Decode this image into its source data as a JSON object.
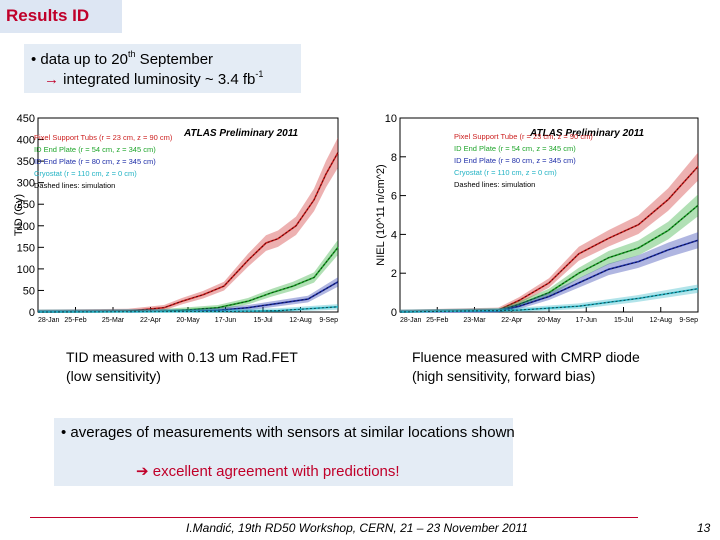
{
  "slide": {
    "title": "Results ID",
    "info": {
      "line1_prefix": "• data up to 20",
      "line1_sup": "th",
      "line1_suffix": " September",
      "line2_arrow": "→",
      "line2_prefix": " integrated luminosity ~ 3.4 fb",
      "line2_sup": "-1"
    },
    "caption_left": [
      "TID measured with 0.13 um Rad.FET",
      "(low sensitivity)"
    ],
    "caption_right": [
      "Fluence measured with CMRP diode",
      "(high sensitivity, forward bias)"
    ],
    "summary": {
      "line1": "• averages of measurements with sensors at similar locations shown",
      "arrow": "➔",
      "line2": " excellent agreement with predictions!"
    },
    "footer": "I.Mandić, 19th RD50 Workshop, CERN, 21 – 23 November 2011",
    "page_number": "13"
  },
  "colors": {
    "title": "#c0002a",
    "pixel": "#cc1f1f",
    "id54": "#1fa52b",
    "id80": "#1e2ea8",
    "cryostat": "#22b3c4"
  },
  "chart_data": [
    {
      "type": "line",
      "ylabel": "TID (Gy)",
      "banner": "ATLAS Preliminary  2011",
      "ylim": [
        0,
        450
      ],
      "yticks": [
        "0",
        "50",
        "100",
        "150",
        "200",
        "250",
        "300",
        "350",
        "400",
        "450"
      ],
      "xticks": [
        "28-Jan",
        "25-Feb",
        "25-Mar",
        "22-Apr",
        "20-May",
        "17-Jun",
        "15-Jul",
        "12-Aug",
        "9-Sep"
      ],
      "legend": [
        "Pixel Support Tubs (r = 23 cm, z = 90 cm)",
        "ID End Plate (r = 54 cm, z = 345 cm)",
        "ID End Plate (r = 80 cm, z = 345 cm)",
        "Cryostat (r = 110 cm, z = 0 cm)",
        "Dashed lines: simulation"
      ],
      "series": [
        {
          "name": "Pixel Support Tubs",
          "color": "#cc1f1f",
          "x": [
            0,
            0.3,
            0.42,
            0.48,
            0.55,
            0.62,
            0.7,
            0.76,
            0.8,
            0.86,
            0.92,
            0.96,
            1.0
          ],
          "values": [
            0,
            2,
            10,
            25,
            40,
            60,
            120,
            160,
            170,
            200,
            260,
            320,
            370
          ]
        },
        {
          "name": "ID End Plate 54 cm",
          "color": "#1fa52b",
          "x": [
            0,
            0.4,
            0.5,
            0.6,
            0.7,
            0.78,
            0.85,
            0.92,
            1.0
          ],
          "values": [
            0,
            1,
            5,
            10,
            25,
            45,
            60,
            80,
            150
          ]
        },
        {
          "name": "ID End Plate 80 cm",
          "color": "#1e2ea8",
          "x": [
            0,
            0.5,
            0.6,
            0.7,
            0.8,
            0.9,
            1.0
          ],
          "values": [
            0,
            1,
            4,
            10,
            20,
            30,
            70
          ]
        },
        {
          "name": "Cryostat",
          "color": "#22b3c4",
          "x": [
            0,
            0.6,
            0.8,
            1.0
          ],
          "values": [
            0,
            1,
            3,
            12
          ]
        }
      ]
    },
    {
      "type": "line",
      "ylabel": "NIEL (10^11 n/cm^2)",
      "banner": "ATLAS Preliminary  2011",
      "ylim": [
        0,
        10
      ],
      "yticks": [
        "0",
        "2",
        "4",
        "6",
        "8",
        "10"
      ],
      "xticks": [
        "28-Jan",
        "25-Feb",
        "23-Mar",
        "22-Apr",
        "20-May",
        "17-Jun",
        "15-Jul",
        "12-Aug",
        "9-Sep"
      ],
      "legend": [
        "Pixel Support Tube (r = 23 cm, z = 90 cm)",
        "ID End Plate (r = 54 cm, z = 345 cm)",
        "ID End Plate (r = 80 cm, z = 345 cm)",
        "Cryostat (r = 110 cm, z = 0 cm)",
        "Dashed lines: simulation"
      ],
      "series": [
        {
          "name": "Pixel Support Tube",
          "color": "#cc1f1f",
          "x": [
            0,
            0.33,
            0.4,
            0.5,
            0.6,
            0.7,
            0.8,
            0.9,
            1.0
          ],
          "values": [
            0,
            0.1,
            0.6,
            1.5,
            3.0,
            3.8,
            4.5,
            5.8,
            7.5
          ]
        },
        {
          "name": "ID End Plate 54 cm",
          "color": "#1fa52b",
          "x": [
            0,
            0.33,
            0.4,
            0.5,
            0.6,
            0.7,
            0.8,
            0.9,
            1.0
          ],
          "values": [
            0,
            0.05,
            0.4,
            1.0,
            2.0,
            2.8,
            3.3,
            4.2,
            5.5
          ]
        },
        {
          "name": "ID End Plate 80 cm",
          "color": "#1e2ea8",
          "x": [
            0,
            0.33,
            0.4,
            0.5,
            0.6,
            0.7,
            0.8,
            0.9,
            1.0
          ],
          "values": [
            0,
            0.03,
            0.3,
            0.8,
            1.5,
            2.2,
            2.6,
            3.2,
            3.7
          ]
        },
        {
          "name": "Cryostat",
          "color": "#22b3c4",
          "x": [
            0,
            0.4,
            0.6,
            0.8,
            1.0
          ],
          "values": [
            0,
            0.1,
            0.3,
            0.7,
            1.2
          ]
        }
      ]
    }
  ]
}
